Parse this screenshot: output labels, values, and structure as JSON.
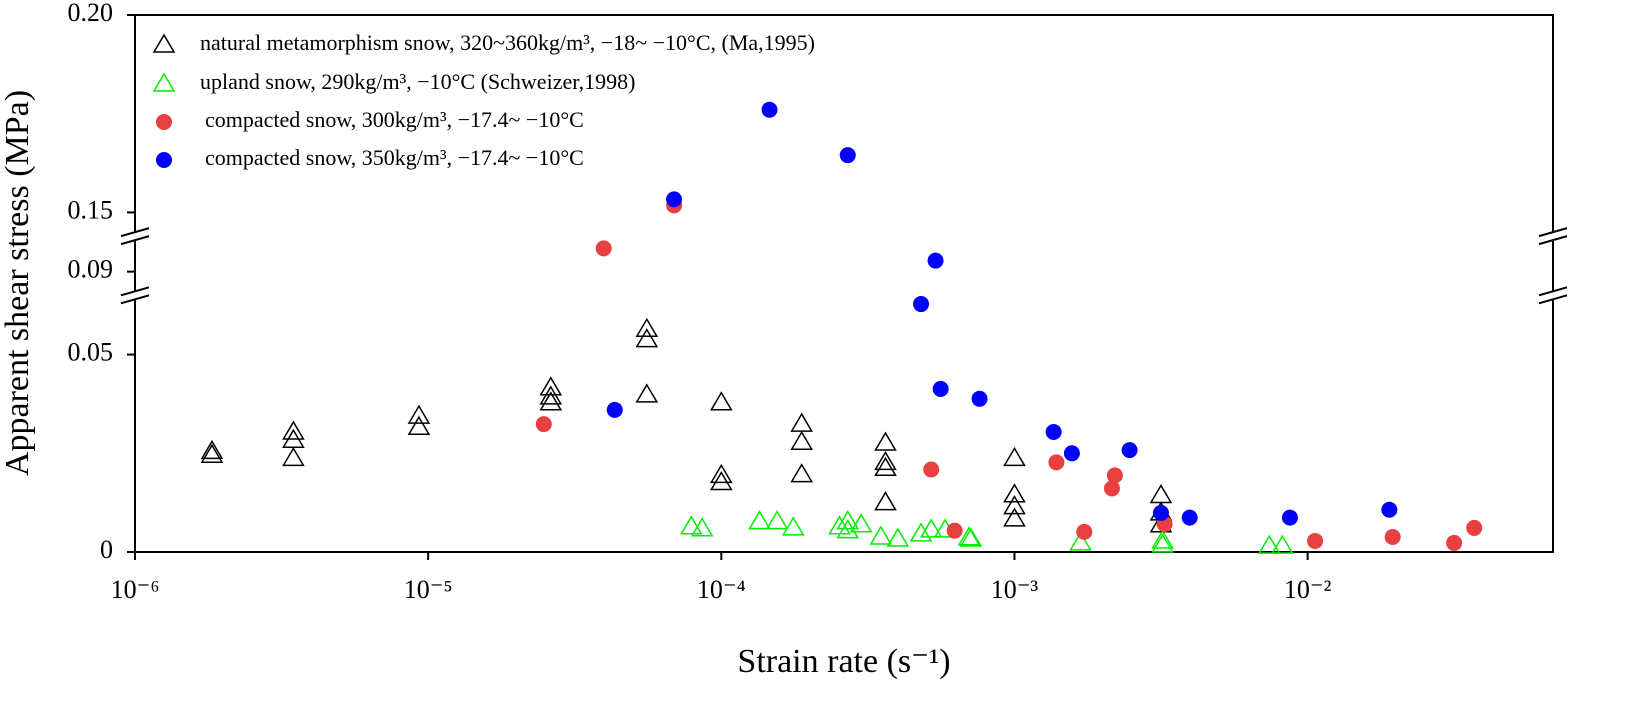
{
  "chart_data": {
    "type": "scatter",
    "x_label": "Strain rate (s⁻¹)",
    "y_label": "Apparent shear stress (MPa)",
    "x_scale": "log",
    "xlim": [
      1e-06,
      0.0687
    ],
    "xticks": [
      {
        "value": 1e-06,
        "label": "10⁻⁶"
      },
      {
        "value": 1e-05,
        "label": "10⁻⁵"
      },
      {
        "value": 0.0001,
        "label": "10⁻⁴"
      },
      {
        "value": 0.001,
        "label": "10⁻³"
      },
      {
        "value": 0.01,
        "label": "10⁻²"
      }
    ],
    "ylim": [
      0,
      0.2
    ],
    "y_segments": [
      [
        0,
        0.065
      ],
      [
        0.084,
        0.099
      ],
      [
        0.144,
        0.2
      ]
    ],
    "yticks": [
      0,
      0.05,
      0.09,
      0.15,
      {
        "value": 0.2,
        "label": "0.20"
      }
    ],
    "legend": "upper left",
    "series": [
      {
        "name": "natural metamorphism snow, 320~360kg/m³, −18~ −10°C, (Ma,1995)",
        "color": "#000000",
        "marker": "triangle-open",
        "x": [
          1.83e-06,
          1.83e-06,
          3.47e-06,
          3.47e-06,
          3.47e-06,
          9.3e-06,
          9.3e-06,
          2.62e-05,
          2.62e-05,
          2.62e-05,
          5.57e-05,
          5.57e-05,
          5.57e-05,
          0.0001,
          0.0001,
          0.0001,
          0.000188,
          0.000188,
          0.000188,
          0.000363,
          0.000363,
          0.000363,
          0.000363,
          0.001,
          0.001,
          0.001,
          0.001,
          0.00316,
          0.00316,
          0.00316
        ],
        "values": [
          0.0255,
          0.0245,
          0.0304,
          0.0283,
          0.0237,
          0.0344,
          0.0316,
          0.0416,
          0.0393,
          0.0378,
          0.0564,
          0.0538,
          0.0398,
          0.0378,
          0.0194,
          0.0176,
          0.0324,
          0.0278,
          0.0196,
          0.0276,
          0.0227,
          0.0212,
          0.0125,
          0.0237,
          0.0145,
          0.0115,
          0.0084,
          0.0143,
          0.0099,
          0.0069
        ]
      },
      {
        "name": "upland snow, 290kg/m³, −10°C (Schweizer,1998)",
        "color": "#00ee00",
        "marker": "triangle-open",
        "x": [
          7.9e-05,
          8.6e-05,
          0.000135,
          0.000155,
          0.000176,
          0.000253,
          0.00027,
          0.00027,
          0.0003,
          0.00035,
          0.0004,
          0.00048,
          0.00052,
          0.00058,
          0.0007,
          0.00071,
          0.00168,
          0.0032,
          0.0032,
          0.0074,
          0.0082
        ],
        "values": [
          0.0064,
          0.0059,
          0.0077,
          0.0077,
          0.0061,
          0.0064,
          0.0077,
          0.0054,
          0.0069,
          0.0038,
          0.0033,
          0.0046,
          0.0056,
          0.0056,
          0.0036,
          0.0033,
          0.0023,
          0.0028,
          0.0018,
          0.0015,
          0.0015
        ]
      },
      {
        "name": "compacted snow, 300kg/m³, −17.4~ −10°C",
        "color": "#e84040",
        "marker": "circle",
        "x": [
          3.97e-05,
          6.9e-05,
          2.48e-05,
          0.00052,
          0.000625,
          0.00139,
          0.00173,
          0.0022,
          0.00215,
          0.00325,
          0.0106,
          0.0195,
          0.0316,
          0.037
        ],
        "values": [
          0.0959,
          0.1518,
          0.0324,
          0.0209,
          0.0054,
          0.0227,
          0.0051,
          0.0194,
          0.0161,
          0.0071,
          0.0028,
          0.0038,
          0.0023,
          0.0061
        ]
      },
      {
        "name": "compacted snow, 350kg/m³, −17.4~ −10°C",
        "color": "#0000ff",
        "marker": "circle",
        "x": [
          6.9e-05,
          0.000146,
          0.00027,
          0.000538,
          0.00048,
          4.33e-05,
          0.00056,
          0.00076,
          0.00136,
          0.00157,
          0.00247,
          0.00316,
          0.00396,
          0.0087,
          0.019
        ],
        "values": [
          0.1533,
          0.176,
          0.1645,
          0.0928,
          0.0628,
          0.036,
          0.0413,
          0.0388,
          0.0304,
          0.025,
          0.0258,
          0.0099,
          0.0087,
          0.0087,
          0.0107
        ]
      }
    ]
  }
}
